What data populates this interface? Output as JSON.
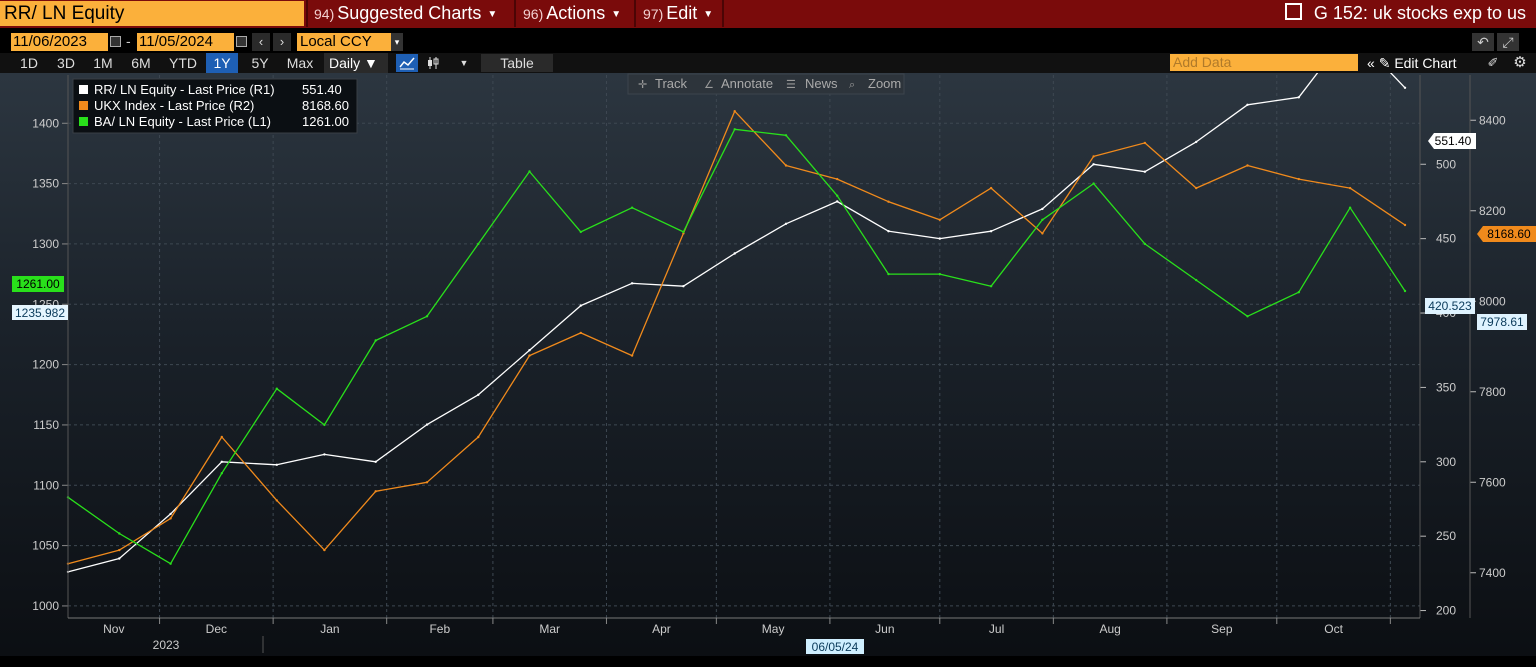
{
  "header": {
    "security": "RR/ LN Equity",
    "menus": [
      {
        "num": "94)",
        "label": "Suggested Charts"
      },
      {
        "num": "96)",
        "label": "Actions"
      },
      {
        "num": "97)",
        "label": "Edit"
      }
    ],
    "title": "G 152: uk stocks exp to us"
  },
  "controls": {
    "start_date": "11/06/2023",
    "end_date": "11/05/2024",
    "date_sep": "-",
    "currency": "Local CCY",
    "ranges": [
      "1D",
      "3D",
      "1M",
      "6M",
      "YTD",
      "1Y",
      "5Y",
      "Max"
    ],
    "active_range": "1Y",
    "frequency": "Daily",
    "table_label": "Table",
    "add_data_placeholder": "Add Data",
    "edit_chart_label": "Edit Chart"
  },
  "chart_tools": {
    "track": "Track",
    "annotate": "Annotate",
    "news": "News",
    "zoom": "Zoom"
  },
  "legend": [
    {
      "label": "RR/ LN Equity - Last Price (R1)",
      "value": "551.40",
      "color": "#ffffff"
    },
    {
      "label": "UKX Index - Last Price (R2)",
      "value": "8168.60",
      "color": "#f08a1c"
    },
    {
      "label": "BA/ LN Equity - Last Price (L1)",
      "value": "1261.00",
      "color": "#29e01b"
    }
  ],
  "axis_labels": {
    "left_ticks": [
      "1000",
      "1050",
      "1100",
      "1150",
      "1200",
      "1250",
      "1300",
      "1350",
      "1400"
    ],
    "r1_ticks": [
      "200",
      "250",
      "300",
      "350",
      "400",
      "450",
      "500"
    ],
    "r2_ticks": [
      "7400",
      "7600",
      "7800",
      "8000",
      "8200",
      "8400"
    ],
    "months": [
      "Nov",
      "Dec",
      "Jan",
      "Feb",
      "Mar",
      "Apr",
      "May",
      "Jun",
      "Jul",
      "Aug",
      "Sep",
      "Oct"
    ],
    "year_label": "2023",
    "cursor_date": "06/05/24"
  },
  "tags": {
    "ba_last": "1261.00",
    "left_cursor": "1235.982",
    "rr_last": "551.40",
    "rr_cursor": "420.523",
    "ukx_last": "8168.60",
    "ukx_cursor": "7978.61"
  },
  "chart_data": {
    "type": "line",
    "x": [
      "2023-11-06",
      "2023-11-20",
      "2023-12-04",
      "2023-12-18",
      "2024-01-02",
      "2024-01-15",
      "2024-01-29",
      "2024-02-12",
      "2024-02-26",
      "2024-03-11",
      "2024-03-25",
      "2024-04-08",
      "2024-04-22",
      "2024-05-06",
      "2024-05-20",
      "2024-06-03",
      "2024-06-17",
      "2024-07-01",
      "2024-07-15",
      "2024-07-29",
      "2024-08-12",
      "2024-08-26",
      "2024-09-09",
      "2024-09-23",
      "2024-10-07",
      "2024-10-21",
      "2024-11-05"
    ],
    "series": [
      {
        "name": "RR/ LN Equity - Last Price (R1)",
        "axis": "R1",
        "color": "#ffffff",
        "values": [
          226,
          235,
          265,
          300,
          298,
          305,
          300,
          325,
          345,
          375,
          405,
          420,
          418,
          440,
          460,
          475,
          455,
          450,
          455,
          470,
          500,
          495,
          515,
          540,
          545,
          590,
          551.4
        ]
      },
      {
        "name": "UKX Index - Last Price (R2)",
        "axis": "R2",
        "color": "#f08a1c",
        "values": [
          7420,
          7450,
          7520,
          7700,
          7560,
          7450,
          7580,
          7600,
          7700,
          7880,
          7930,
          7880,
          8150,
          8420,
          8300,
          8270,
          8220,
          8180,
          8250,
          8150,
          8320,
          8350,
          8250,
          8300,
          8270,
          8250,
          8168.6
        ]
      },
      {
        "name": "BA/ LN Equity - Last Price (L1)",
        "axis": "L1",
        "color": "#29e01b",
        "values": [
          1090,
          1060,
          1035,
          1110,
          1180,
          1150,
          1220,
          1240,
          1300,
          1360,
          1310,
          1330,
          1310,
          1395,
          1390,
          1340,
          1275,
          1275,
          1265,
          1320,
          1350,
          1300,
          1270,
          1240,
          1260,
          1330,
          1261
        ]
      }
    ],
    "ylim_left": [
      990,
      1440
    ],
    "ylim_r1": [
      195,
      560
    ],
    "ylim_r2": [
      7300,
      8500
    ],
    "grid": true
  }
}
